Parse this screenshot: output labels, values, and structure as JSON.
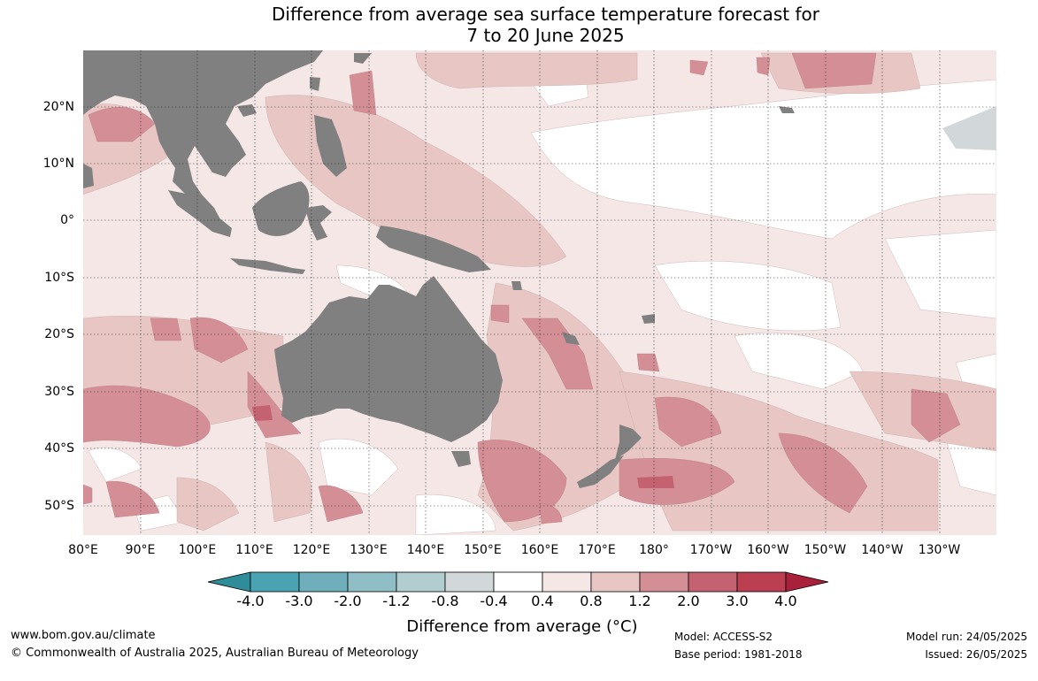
{
  "title_line1": "Difference from average sea surface temperature forecast for",
  "title_line2": "7 to 20 June 2025",
  "lat_labels": [
    "20°N",
    "10°N",
    "0°",
    "10°S",
    "20°S",
    "30°S",
    "40°S",
    "50°S"
  ],
  "lon_labels": [
    "80°E",
    "90°E",
    "100°E",
    "110°E",
    "120°E",
    "130°E",
    "140°E",
    "150°E",
    "160°E",
    "170°E",
    "180°",
    "170°W",
    "160°W",
    "150°W",
    "140°W",
    "130°W"
  ],
  "colorbar": {
    "labels": [
      "-4.0",
      "-3.0",
      "-2.0",
      "-1.2",
      "-0.8",
      "-0.4",
      "0.4",
      "0.8",
      "1.2",
      "2.0",
      "3.0",
      "4.0"
    ],
    "colors": [
      "#2f8c99",
      "#4aa3b2",
      "#6faebb",
      "#8fbec6",
      "#b2cdd0",
      "#d2d8d9",
      "#ffffff",
      "#f4e7e6",
      "#e7c6c4",
      "#d48f96",
      "#c56271",
      "#bb3f50",
      "#a8203a"
    ],
    "title": "Difference from average (°C)"
  },
  "land_color": "#808080",
  "footer": {
    "url": "www.bom.gov.au/climate",
    "copyright": "© Commonwealth of Australia 2025, Australian Bureau of Meteorology",
    "model": "Model: ACCESS-S2",
    "base_period": "Base period: 1981-2018",
    "model_run": "Model run: 24/05/2025",
    "issued": "Issued: 26/05/2025"
  }
}
